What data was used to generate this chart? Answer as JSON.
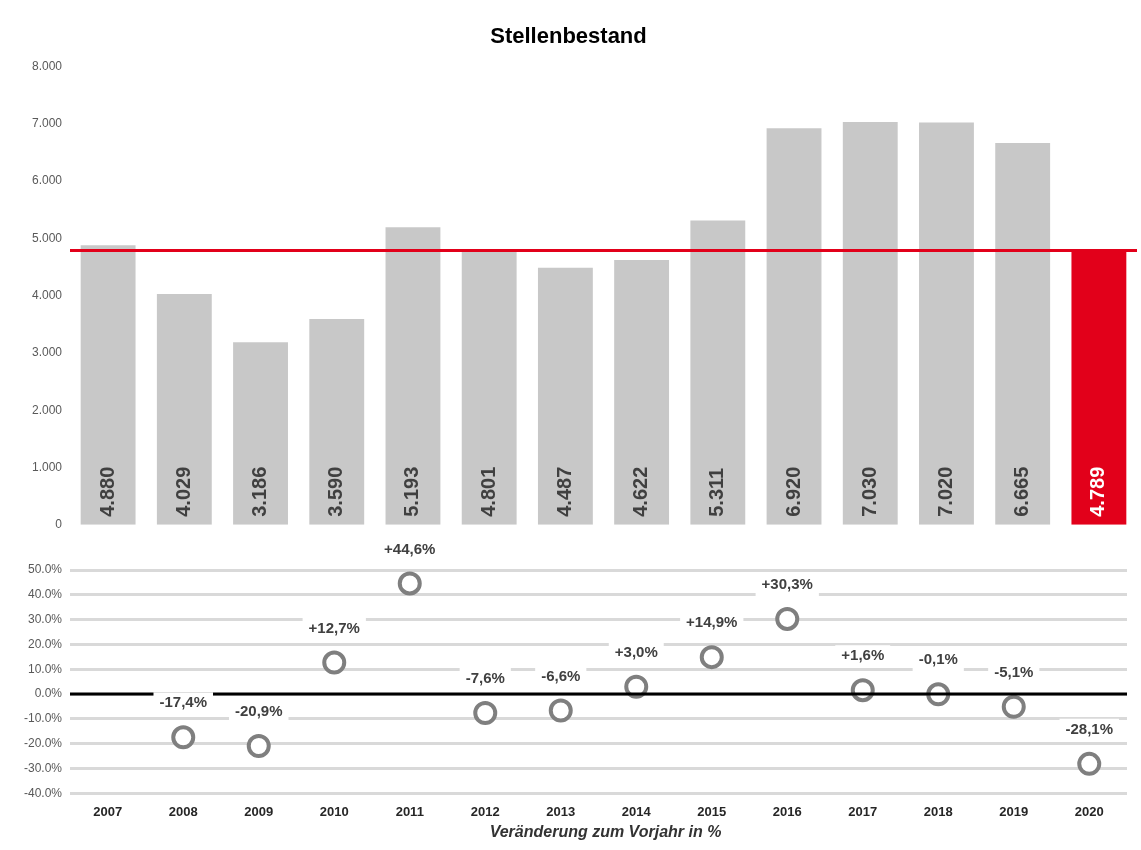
{
  "chart_data": [
    {
      "type": "bar",
      "title": "Stellenbestand",
      "categories": [
        "2007",
        "2008",
        "2009",
        "2010",
        "2011",
        "2012",
        "2013",
        "2014",
        "2015",
        "2016",
        "2017",
        "2018",
        "2019",
        "2020"
      ],
      "values": [
        4880,
        4029,
        3186,
        3590,
        5193,
        4801,
        4487,
        4622,
        5311,
        6920,
        7030,
        7020,
        6665,
        4789
      ],
      "colors": [
        "#c8c8c8",
        "#c8c8c8",
        "#c8c8c8",
        "#c8c8c8",
        "#c8c8c8",
        "#c8c8c8",
        "#c8c8c8",
        "#c8c8c8",
        "#c8c8c8",
        "#c8c8c8",
        "#c8c8c8",
        "#c8c8c8",
        "#c8c8c8",
        "#e2001a"
      ],
      "value_labels": [
        "4.880",
        "4.029",
        "3.186",
        "3.590",
        "5.193",
        "4.801",
        "4.487",
        "4.622",
        "5.311",
        "6.920",
        "7.030",
        "7.020",
        "6.665",
        "4.789"
      ],
      "ylim": [
        0,
        8000
      ],
      "yticks": [
        {
          "value": 0,
          "label": "0"
        },
        {
          "value": 1000,
          "label": "1.000"
        },
        {
          "value": 2000,
          "label": "2.000"
        },
        {
          "value": 3000,
          "label": "3.000"
        },
        {
          "value": 4000,
          "label": "4.000"
        },
        {
          "value": 5000,
          "label": "5.000"
        },
        {
          "value": 6000,
          "label": "6.000"
        },
        {
          "value": 7000,
          "label": "7.000"
        },
        {
          "value": 8000,
          "label": "8.000"
        }
      ],
      "ref_lines": [
        {
          "axis": "y",
          "value": 4789,
          "color": "#e2001a"
        }
      ],
      "grid": false,
      "legend": false,
      "tick_labels": "y"
    },
    {
      "type": "scatter",
      "xlabel": "Veränderung zum Vorjahr in %",
      "categories": [
        "2007",
        "2008",
        "2009",
        "2010",
        "2011",
        "2012",
        "2013",
        "2014",
        "2015",
        "2016",
        "2017",
        "2018",
        "2019",
        "2020"
      ],
      "series": [
        {
          "color": "#7f7f7f",
          "values": [
            null,
            -17.4,
            -20.9,
            12.7,
            44.6,
            -7.6,
            -6.6,
            3.0,
            14.9,
            30.3,
            1.6,
            -0.1,
            -5.1,
            -28.1
          ],
          "value_labels": [
            null,
            "-17,4%",
            "-20,9%",
            "+12,7%",
            "+44,6%",
            "-7,6%",
            "-6,6%",
            "+3,0%",
            "+14,9%",
            "+30,3%",
            "+1,6%",
            "-0,1%",
            "-5,1%",
            "-28,1%"
          ]
        }
      ],
      "ylim": [
        -40,
        50
      ],
      "yticks": [
        {
          "value": -40,
          "label": "-40.0%"
        },
        {
          "value": -30,
          "label": "-30.0%"
        },
        {
          "value": -20,
          "label": "-20.0%"
        },
        {
          "value": -10,
          "label": "-10.0%"
        },
        {
          "value": 0,
          "label": "0.0%"
        },
        {
          "value": 10,
          "label": "10.0%"
        },
        {
          "value": 20,
          "label": "20.0%"
        },
        {
          "value": 30,
          "label": "30.0%"
        },
        {
          "value": 40,
          "label": "40.0%"
        },
        {
          "value": 50,
          "label": "50.0%"
        }
      ],
      "ref_lines": [
        {
          "axis": "y",
          "value": 0,
          "color": "#000000"
        }
      ],
      "grid": "y",
      "legend": false,
      "marker": "circle"
    }
  ]
}
